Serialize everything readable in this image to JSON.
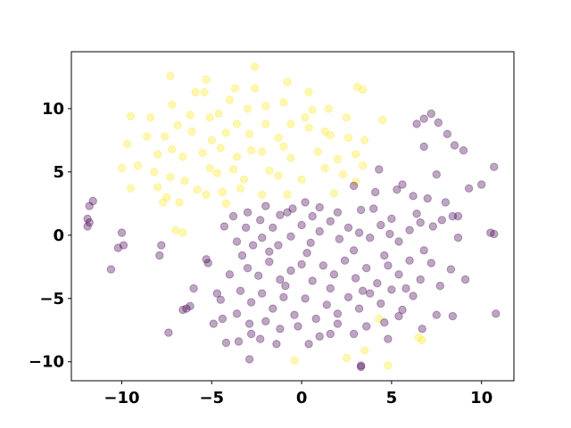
{
  "chart_data": {
    "type": "scatter",
    "title": "",
    "xlabel": "",
    "ylabel": "",
    "xlim": [
      -12.8,
      11.8
    ],
    "ylim": [
      -11.5,
      14.5
    ],
    "xticks": [
      -10,
      -5,
      0,
      5,
      10
    ],
    "yticks": [
      -10,
      -5,
      0,
      5,
      10
    ],
    "tick_labels_x": [
      "−10",
      "−5",
      "0",
      "5",
      "10"
    ],
    "tick_labels_y": [
      "−10",
      "−5",
      "0",
      "5",
      "10"
    ],
    "grid": false,
    "marker_opacity": 0.35,
    "series": [
      {
        "color": "#fde725",
        "points": [
          [
            -7.3,
            12.6
          ],
          [
            -5.3,
            12.3
          ],
          [
            -2.6,
            13.3
          ],
          [
            -5.9,
            11.3
          ],
          [
            -5.4,
            11.3
          ],
          [
            -3.7,
            11.6
          ],
          [
            -4.0,
            10.7
          ],
          [
            -2.6,
            11.6
          ],
          [
            -0.8,
            12.1
          ],
          [
            0.4,
            11.3
          ],
          [
            3.1,
            11.7
          ],
          [
            3.4,
            11.5
          ],
          [
            -9.5,
            9.4
          ],
          [
            -8.4,
            9.3
          ],
          [
            -7.2,
            10.3
          ],
          [
            -6.2,
            9.5
          ],
          [
            -5.1,
            9.3
          ],
          [
            -4.6,
            9.6
          ],
          [
            -3.0,
            10.0
          ],
          [
            -2.0,
            10.2
          ],
          [
            -1.0,
            10.5
          ],
          [
            0.2,
            9.3
          ],
          [
            1.5,
            10.0
          ],
          [
            2.5,
            9.3
          ],
          [
            4.5,
            9.1
          ],
          [
            -9.7,
            7.2
          ],
          [
            -8.6,
            7.8
          ],
          [
            -7.6,
            7.8
          ],
          [
            -6.9,
            8.7
          ],
          [
            -6.1,
            8.2
          ],
          [
            -5.0,
            7.5
          ],
          [
            -4.2,
            8.1
          ],
          [
            -3.6,
            8.8
          ],
          [
            -2.9,
            8.0
          ],
          [
            -2.0,
            8.8
          ],
          [
            -1.3,
            7.7
          ],
          [
            -0.6,
            8.8
          ],
          [
            0.4,
            8.5
          ],
          [
            1.3,
            8.2
          ],
          [
            1.6,
            7.9
          ],
          [
            2.6,
            7.7
          ],
          [
            -10.0,
            5.3
          ],
          [
            -9.1,
            5.5
          ],
          [
            -8.0,
            6.4
          ],
          [
            -7.2,
            6.8
          ],
          [
            -6.6,
            6.2
          ],
          [
            -5.5,
            6.5
          ],
          [
            -4.5,
            6.9
          ],
          [
            -3.6,
            6.2
          ],
          [
            -2.8,
            6.7
          ],
          [
            -2.2,
            6.6
          ],
          [
            -1.0,
            7.0
          ],
          [
            -0.6,
            6.1
          ],
          [
            0.9,
            6.6
          ],
          [
            2.0,
            6.0
          ],
          [
            3.0,
            6.4
          ],
          [
            -8.2,
            5.0
          ],
          [
            -7.3,
            4.6
          ],
          [
            -6.5,
            4.3
          ],
          [
            -5.1,
            5.3
          ],
          [
            -4.7,
            4.9
          ],
          [
            -3.8,
            5.2
          ],
          [
            -3.2,
            4.4
          ],
          [
            -1.8,
            5.1
          ],
          [
            -1.3,
            4.7
          ],
          [
            0.0,
            4.4
          ],
          [
            1.3,
            5.3
          ],
          [
            2.3,
            4.8
          ],
          [
            3.4,
            5.5
          ],
          [
            -9.5,
            3.7
          ],
          [
            -8.0,
            3.8
          ],
          [
            -7.5,
            3.0
          ],
          [
            -5.8,
            3.6
          ],
          [
            -5.3,
            3.2
          ],
          [
            -4.4,
            3.4
          ],
          [
            -3.4,
            3.7
          ],
          [
            -2.2,
            3.2
          ],
          [
            -0.8,
            3.2
          ],
          [
            1.8,
            3.3
          ],
          [
            3.0,
            4.2
          ],
          [
            -7.7,
            2.6
          ],
          [
            -6.8,
            2.6
          ],
          [
            -4.2,
            2.5
          ],
          [
            -7.0,
            0.4
          ],
          [
            -6.6,
            0.2
          ],
          [
            4.3,
            -6.6
          ],
          [
            6.5,
            -8.1
          ],
          [
            6.7,
            -8.3
          ],
          [
            4.8,
            -10.3
          ],
          [
            -0.4,
            -9.9
          ],
          [
            2.5,
            -9.7
          ],
          [
            3.5,
            -9.1
          ],
          [
            0.6,
            9.9
          ],
          [
            3.5,
            7.5
          ]
        ]
      },
      {
        "color": "#440154",
        "points": [
          [
            6.8,
            9.2
          ],
          [
            7.2,
            9.6
          ],
          [
            6.4,
            8.8
          ],
          [
            7.6,
            8.9
          ],
          [
            8.1,
            8.0
          ],
          [
            6.8,
            7.0
          ],
          [
            8.5,
            7.1
          ],
          [
            9.0,
            6.7
          ],
          [
            10.7,
            5.4
          ],
          [
            4.3,
            5.2
          ],
          [
            5.6,
            4.0
          ],
          [
            7.5,
            4.8
          ],
          [
            10.0,
            4.0
          ],
          [
            2.9,
            3.9
          ],
          [
            4.1,
            3.4
          ],
          [
            5.3,
            3.6
          ],
          [
            6.2,
            3.1
          ],
          [
            7.0,
            2.9
          ],
          [
            8.0,
            2.6
          ],
          [
            9.3,
            3.7
          ],
          [
            -11.6,
            2.7
          ],
          [
            -11.8,
            2.3
          ],
          [
            -11.9,
            1.3
          ],
          [
            -11.8,
            1.0
          ],
          [
            -11.9,
            0.7
          ],
          [
            -10.0,
            0.2
          ],
          [
            -9.9,
            -0.8
          ],
          [
            -10.2,
            -1.0
          ],
          [
            -7.8,
            -0.8
          ],
          [
            -7.9,
            -1.6
          ],
          [
            -10.6,
            -2.7
          ],
          [
            -5.3,
            -1.9
          ],
          [
            -5.2,
            -2.2
          ],
          [
            -4.7,
            -4.6
          ],
          [
            -4.5,
            -5.1
          ],
          [
            -6.0,
            -4.2
          ],
          [
            -6.2,
            -5.6
          ],
          [
            -6.4,
            -5.8
          ],
          [
            -6.6,
            -5.9
          ],
          [
            -7.4,
            -7.7
          ],
          [
            -4.9,
            -7.0
          ],
          [
            -4.4,
            -6.6
          ],
          [
            -4.2,
            -8.5
          ],
          [
            -3.5,
            -8.4
          ],
          [
            -2.8,
            -7.8
          ],
          [
            -2.9,
            -9.8
          ],
          [
            -2.3,
            -8.2
          ],
          [
            -1.4,
            -8.6
          ],
          [
            0.4,
            -8.6
          ],
          [
            1.6,
            -7.8
          ],
          [
            2.9,
            -7.8
          ],
          [
            3.3,
            -10.3
          ],
          [
            3.3,
            -10.4
          ],
          [
            4.8,
            -8.2
          ],
          [
            6.7,
            -7.4
          ],
          [
            10.8,
            -6.2
          ],
          [
            9.1,
            -3.5
          ],
          [
            7.7,
            -4.0
          ],
          [
            8.4,
            -6.4
          ],
          [
            7.5,
            -6.3
          ],
          [
            8.3,
            -2.7
          ],
          [
            8.7,
            -0.2
          ],
          [
            10.7,
            0.1
          ],
          [
            10.5,
            0.2
          ],
          [
            8.7,
            1.5
          ],
          [
            8.4,
            1.5
          ],
          [
            3.3,
            2.0
          ],
          [
            1.0,
            2.2
          ],
          [
            0.2,
            2.6
          ],
          [
            -0.5,
            2.1
          ],
          [
            -1.2,
            1.6
          ],
          [
            -2.0,
            2.3
          ],
          [
            -3.0,
            1.8
          ],
          [
            -3.8,
            1.5
          ],
          [
            -4.3,
            0.7
          ],
          [
            -3.6,
            -0.5
          ],
          [
            -3.3,
            -1.6
          ],
          [
            -2.7,
            -0.8
          ],
          [
            -2.2,
            -0.2
          ],
          [
            -1.6,
            0.6
          ],
          [
            -1.3,
            -0.8
          ],
          [
            -0.6,
            -0.1
          ],
          [
            0.0,
            0.8
          ],
          [
            0.5,
            -0.6
          ],
          [
            1.0,
            0.3
          ],
          [
            1.6,
            1.1
          ],
          [
            2.1,
            -0.3
          ],
          [
            2.6,
            0.6
          ],
          [
            3.2,
            0.2
          ],
          [
            3.8,
            -0.2
          ],
          [
            4.4,
            0.8
          ],
          [
            4.9,
            0.1
          ],
          [
            5.4,
            -0.5
          ],
          [
            6.0,
            0.4
          ],
          [
            6.6,
            1.0
          ],
          [
            7.3,
            0.7
          ],
          [
            -3.0,
            -2.6
          ],
          [
            -2.4,
            -3.2
          ],
          [
            -1.8,
            -2.1
          ],
          [
            -1.2,
            -3.5
          ],
          [
            -0.6,
            -2.8
          ],
          [
            0.0,
            -2.3
          ],
          [
            0.6,
            -3.6
          ],
          [
            1.2,
            -2.4
          ],
          [
            1.8,
            -3.1
          ],
          [
            2.4,
            -2.0
          ],
          [
            3.0,
            -3.4
          ],
          [
            3.6,
            -2.6
          ],
          [
            4.2,
            -3.8
          ],
          [
            4.8,
            -2.4
          ],
          [
            5.4,
            -3.1
          ],
          [
            6.0,
            -2.0
          ],
          [
            6.6,
            -3.5
          ],
          [
            7.2,
            -2.2
          ],
          [
            -4.0,
            -3.1
          ],
          [
            -3.4,
            -4.4
          ],
          [
            -2.8,
            -5.3
          ],
          [
            -2.2,
            -4.6
          ],
          [
            -1.6,
            -5.8
          ],
          [
            -1.0,
            -4.9
          ],
          [
            -0.4,
            -6.3
          ],
          [
            0.2,
            -5.0
          ],
          [
            0.8,
            -6.6
          ],
          [
            1.4,
            -5.5
          ],
          [
            2.0,
            -6.2
          ],
          [
            2.6,
            -4.9
          ],
          [
            3.2,
            -5.8
          ],
          [
            3.8,
            -4.6
          ],
          [
            4.4,
            -5.4
          ],
          [
            5.0,
            -4.3
          ],
          [
            5.6,
            -5.9
          ],
          [
            6.2,
            -4.8
          ],
          [
            -3.6,
            -6.2
          ],
          [
            -2.9,
            -7.0
          ],
          [
            -2.0,
            -6.8
          ],
          [
            -1.2,
            -7.4
          ],
          [
            -0.2,
            -7.2
          ],
          [
            1.0,
            -8.0
          ],
          [
            2.0,
            -7.0
          ],
          [
            3.6,
            -7.2
          ],
          [
            4.6,
            -6.9
          ],
          [
            5.4,
            -6.4
          ],
          [
            -3.1,
            0.6
          ],
          [
            -2.3,
            1.2
          ],
          [
            -0.8,
            1.8
          ],
          [
            0.6,
            1.5
          ],
          [
            2.0,
            1.8
          ],
          [
            4.0,
            2.1
          ],
          [
            5.0,
            1.3
          ],
          [
            6.4,
            1.7
          ],
          [
            7.8,
            1.2
          ],
          [
            -1.8,
            -1.3
          ],
          [
            0.3,
            -1.4
          ],
          [
            2.9,
            -1.2
          ],
          [
            4.6,
            -1.6
          ],
          [
            6.8,
            -1.2
          ],
          [
            -0.9,
            -4.0
          ],
          [
            1.6,
            -4.2
          ],
          [
            3.4,
            -4.4
          ],
          [
            5.8,
            -4.2
          ]
        ]
      }
    ]
  }
}
